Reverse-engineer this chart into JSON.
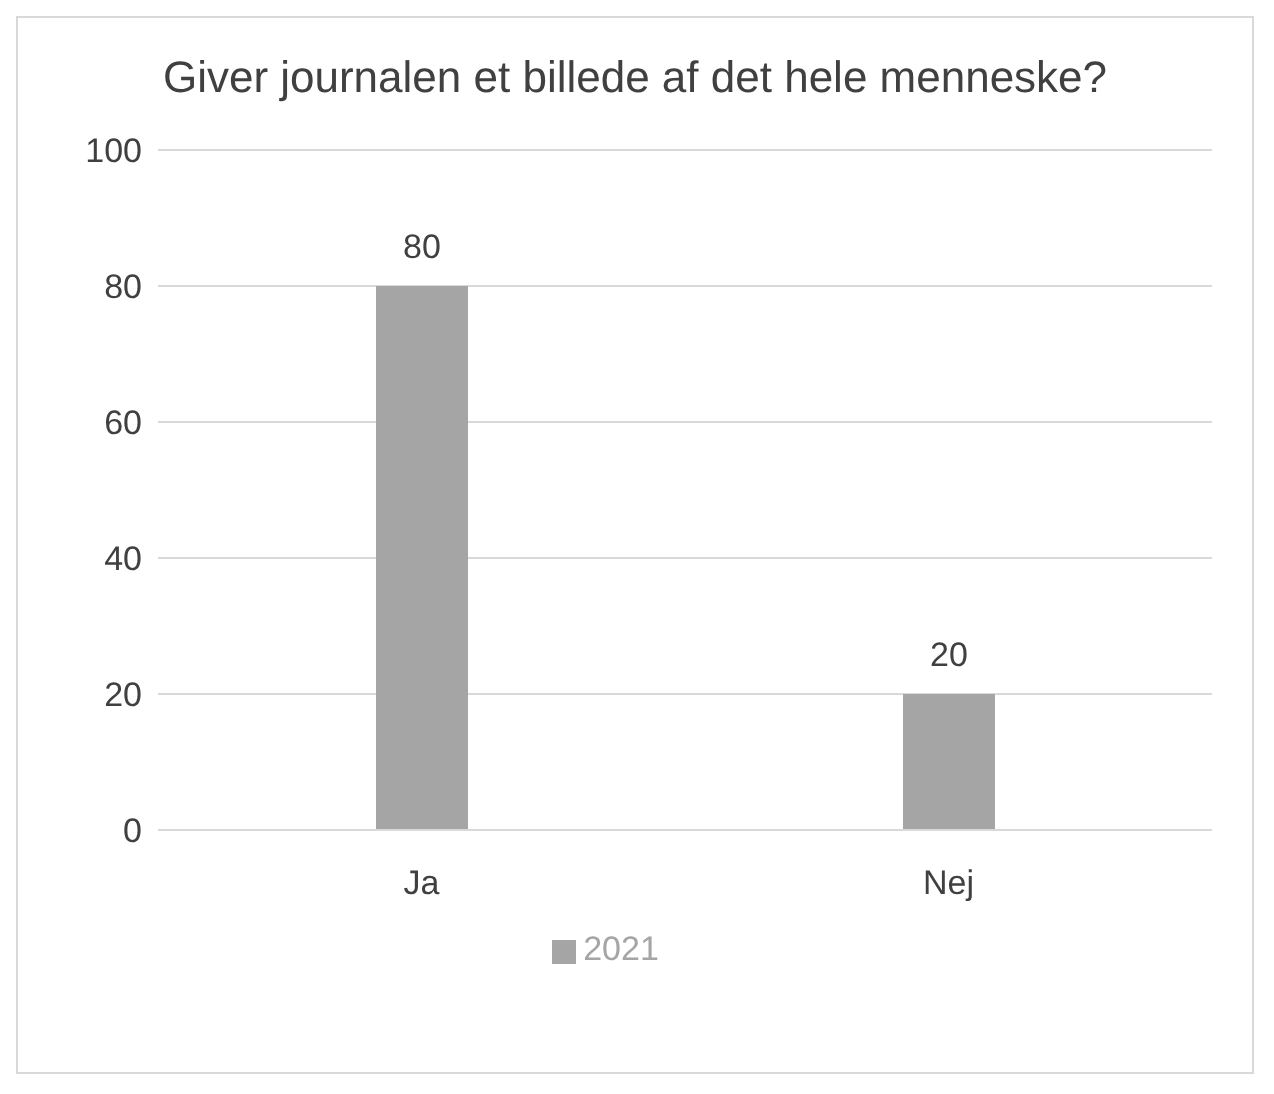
{
  "chart_data": {
    "type": "bar",
    "title": "Giver journalen et billede af det hele menneske?",
    "categories": [
      "Ja",
      "Nej"
    ],
    "series": [
      {
        "name": "2021",
        "color": "#a5a5a5",
        "values": [
          80,
          20
        ]
      }
    ],
    "ylim": [
      0,
      100
    ],
    "yticks": [
      0,
      20,
      40,
      60,
      80,
      100
    ],
    "grid": "y",
    "legend": "bottom",
    "data_labels": true
  }
}
